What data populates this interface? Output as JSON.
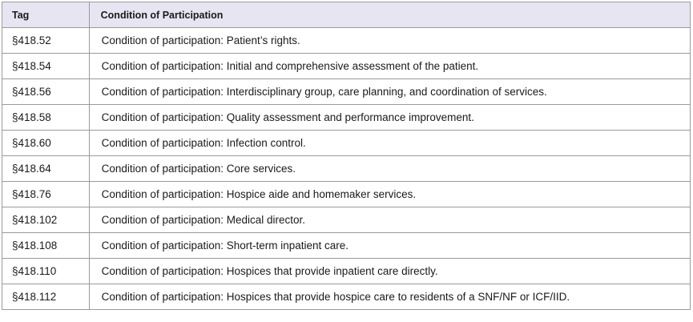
{
  "table": {
    "headers": {
      "tag": "Tag",
      "condition": "Condition of Participation"
    },
    "rows": [
      {
        "tag": "§418.52",
        "condition": "Condition of participation: Patient’s rights."
      },
      {
        "tag": "§418.54",
        "condition": "Condition of participation: Initial and comprehensive assessment of the patient."
      },
      {
        "tag": "§418.56",
        "condition": "Condition of participation: Interdisciplinary group, care planning, and coordination of services."
      },
      {
        "tag": "§418.58",
        "condition": "Condition of participation: Quality assessment and performance improvement."
      },
      {
        "tag": "§418.60",
        "condition": "Condition of participation: Infection control."
      },
      {
        "tag": "§418.64",
        "condition": "Condition of participation: Core services."
      },
      {
        "tag": "§418.76",
        "condition": "Condition of participation: Hospice aide and homemaker services."
      },
      {
        "tag": "§418.102",
        "condition": "Condition of participation: Medical director."
      },
      {
        "tag": "§418.108",
        "condition": "Condition of participation: Short-term inpatient care."
      },
      {
        "tag": "§418.110",
        "condition": "Condition of participation: Hospices that provide inpatient care directly."
      },
      {
        "tag": "§418.112",
        "condition": "Condition of participation: Hospices that provide hospice care to residents of a SNF/NF or ICF/IID."
      }
    ]
  }
}
